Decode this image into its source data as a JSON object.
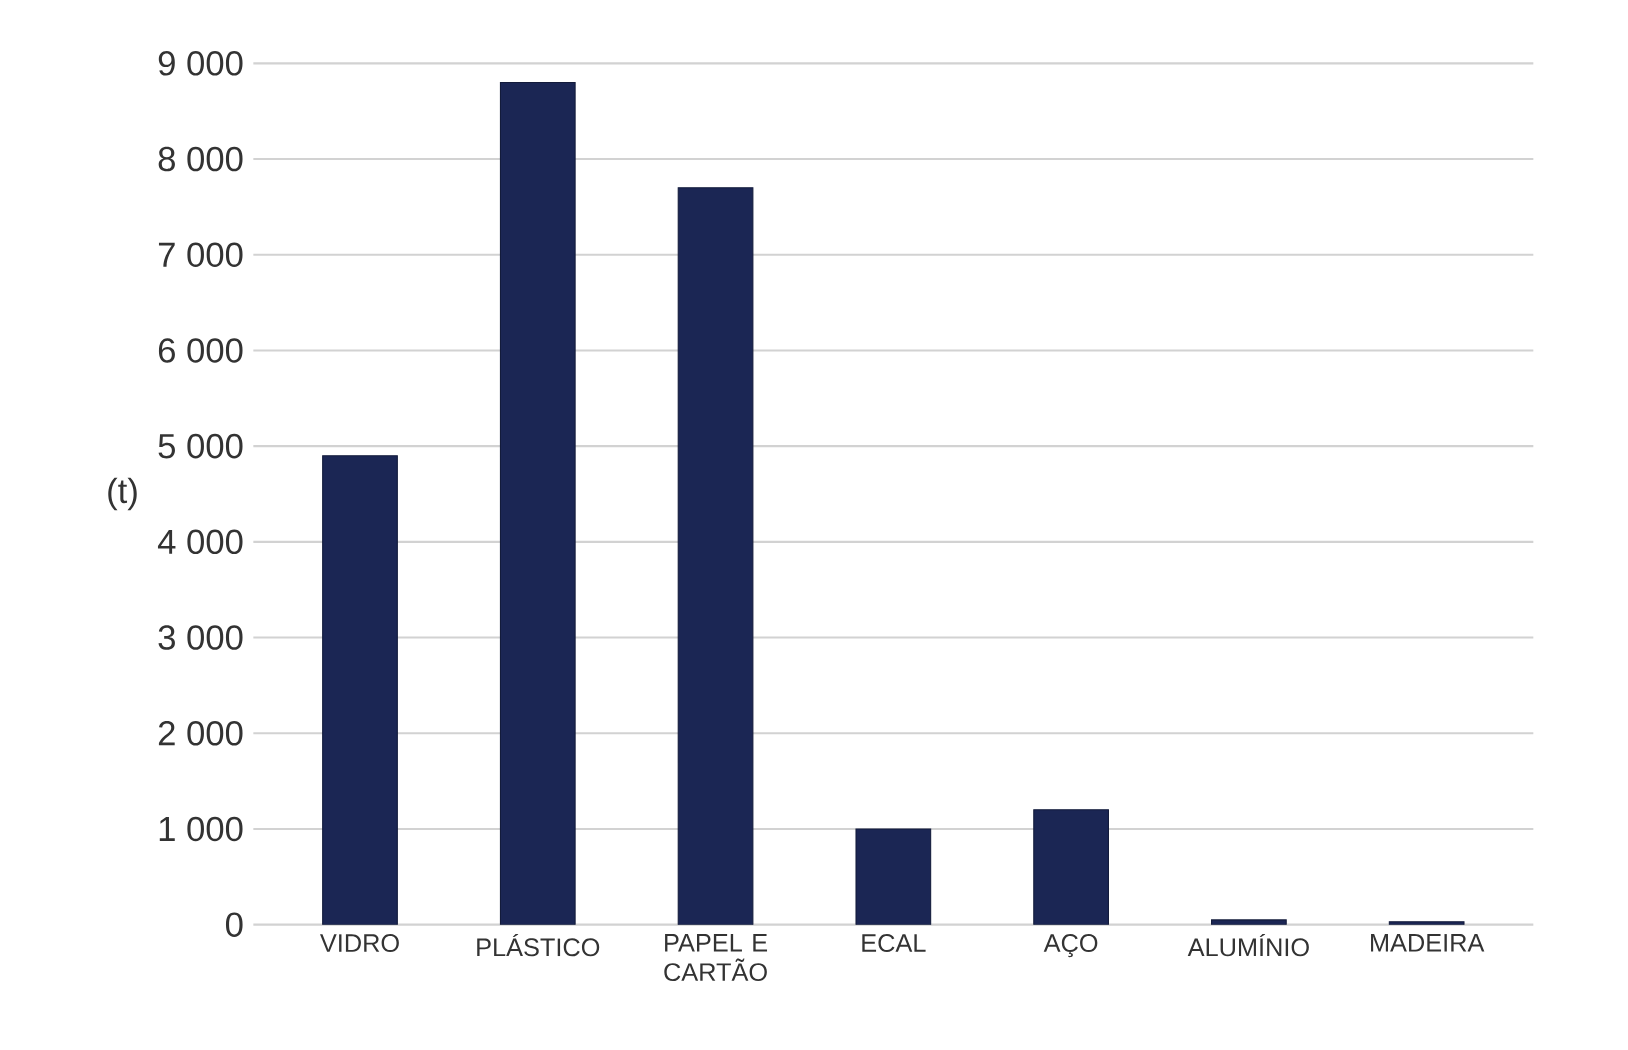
{
  "chart_data": {
    "type": "bar",
    "ylabel": "(t)",
    "categories": [
      "VIDRO",
      "PLÁSTICO",
      "PAPEL E CARTÃO",
      "ECAL",
      "AÇO",
      "ALUMÍNIO",
      "MADEIRA"
    ],
    "values": [
      4900,
      8800,
      7700,
      1000,
      1200,
      50,
      30
    ],
    "color": "#1b2654",
    "ylim": [
      0,
      9000
    ],
    "yticks": [
      {
        "value": 0,
        "label": "0"
      },
      {
        "value": 1000,
        "label": "1 000"
      },
      {
        "value": 2000,
        "label": "2 000"
      },
      {
        "value": 3000,
        "label": "3 000"
      },
      {
        "value": 4000,
        "label": "4 000"
      },
      {
        "value": 5000,
        "label": "5 000"
      },
      {
        "value": 6000,
        "label": "6 000"
      },
      {
        "value": 7000,
        "label": "7 000"
      },
      {
        "value": 8000,
        "label": "8 000"
      },
      {
        "value": 9000,
        "label": "9 000"
      }
    ],
    "grid": "y"
  }
}
